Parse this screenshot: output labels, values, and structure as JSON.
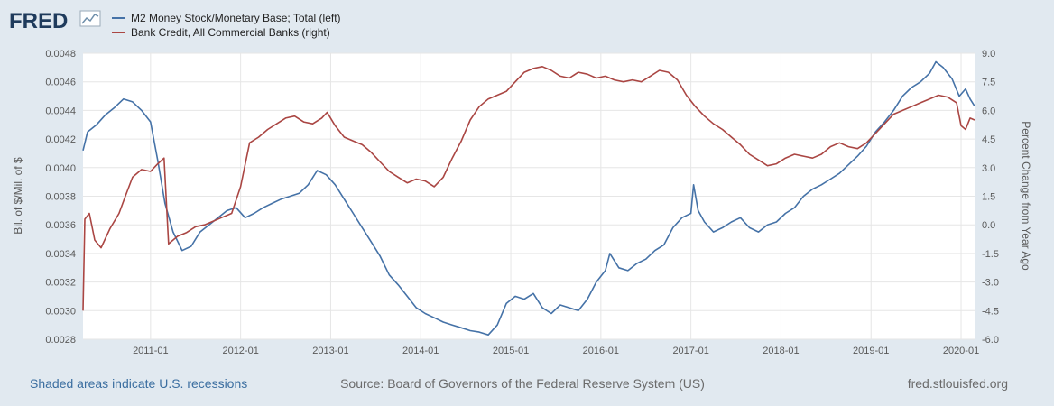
{
  "logo": {
    "text": "FRED"
  },
  "footer": {
    "recession_note": "Shaded areas indicate U.S. recessions",
    "source": "Source: Board of Governors of the Federal Reserve System (US)",
    "site": "fred.stlouisfed.org"
  },
  "colors": {
    "background": "#e1e9f0",
    "plot": "#ffffff",
    "series_left": "#4572a7",
    "series_right": "#aa4643",
    "grid": "#e6e6e6"
  },
  "chart_data": {
    "type": "line",
    "title": "",
    "xlabel": "",
    "ylabel_left": "Bil. of $/Mil. of $",
    "ylabel_right": "Percent Change from Year Ago",
    "xlim": [
      2010.25,
      2020.15
    ],
    "ylim_left": [
      0.0028,
      0.0048
    ],
    "ylim_right": [
      -6.0,
      9.0
    ],
    "x_ticks": [
      {
        "x": 2011.0,
        "label": "2011-01"
      },
      {
        "x": 2012.0,
        "label": "2012-01"
      },
      {
        "x": 2013.0,
        "label": "2013-01"
      },
      {
        "x": 2014.0,
        "label": "2014-01"
      },
      {
        "x": 2015.0,
        "label": "2015-01"
      },
      {
        "x": 2016.0,
        "label": "2016-01"
      },
      {
        "x": 2017.0,
        "label": "2017-01"
      },
      {
        "x": 2018.0,
        "label": "2018-01"
      },
      {
        "x": 2019.0,
        "label": "2019-01"
      },
      {
        "x": 2020.0,
        "label": "2020-01"
      }
    ],
    "y_ticks_left": [
      {
        "v": 0.0028,
        "label": "0.0028"
      },
      {
        "v": 0.003,
        "label": "0.0030"
      },
      {
        "v": 0.0032,
        "label": "0.0032"
      },
      {
        "v": 0.0034,
        "label": "0.0034"
      },
      {
        "v": 0.0036,
        "label": "0.0036"
      },
      {
        "v": 0.0038,
        "label": "0.0038"
      },
      {
        "v": 0.004,
        "label": "0.0040"
      },
      {
        "v": 0.0042,
        "label": "0.0042"
      },
      {
        "v": 0.0044,
        "label": "0.0044"
      },
      {
        "v": 0.0046,
        "label": "0.0046"
      },
      {
        "v": 0.0048,
        "label": "0.0048"
      }
    ],
    "y_ticks_right": [
      {
        "v": -6.0,
        "label": "-6.0"
      },
      {
        "v": -4.5,
        "label": "-4.5"
      },
      {
        "v": -3.0,
        "label": "-3.0"
      },
      {
        "v": -1.5,
        "label": "-1.5"
      },
      {
        "v": 0.0,
        "label": "0.0"
      },
      {
        "v": 1.5,
        "label": "1.5"
      },
      {
        "v": 3.0,
        "label": "3.0"
      },
      {
        "v": 4.5,
        "label": "4.5"
      },
      {
        "v": 6.0,
        "label": "6.0"
      },
      {
        "v": 7.5,
        "label": "7.5"
      },
      {
        "v": 9.0,
        "label": "9.0"
      }
    ],
    "series": [
      {
        "name": "M2 Money Stock/Monetary Base; Total (left)",
        "axis": "left",
        "color": "#4572a7",
        "points": [
          [
            2010.25,
            0.00412
          ],
          [
            2010.3,
            0.00425
          ],
          [
            2010.4,
            0.0043
          ],
          [
            2010.5,
            0.00437
          ],
          [
            2010.6,
            0.00442
          ],
          [
            2010.7,
            0.00448
          ],
          [
            2010.8,
            0.00446
          ],
          [
            2010.9,
            0.0044
          ],
          [
            2011.0,
            0.00432
          ],
          [
            2011.08,
            0.00405
          ],
          [
            2011.16,
            0.00375
          ],
          [
            2011.25,
            0.00355
          ],
          [
            2011.35,
            0.00342
          ],
          [
            2011.45,
            0.00345
          ],
          [
            2011.55,
            0.00355
          ],
          [
            2011.65,
            0.0036
          ],
          [
            2011.75,
            0.00365
          ],
          [
            2011.85,
            0.0037
          ],
          [
            2011.95,
            0.00372
          ],
          [
            2012.05,
            0.00365
          ],
          [
            2012.15,
            0.00368
          ],
          [
            2012.25,
            0.00372
          ],
          [
            2012.35,
            0.00375
          ],
          [
            2012.45,
            0.00378
          ],
          [
            2012.55,
            0.0038
          ],
          [
            2012.65,
            0.00382
          ],
          [
            2012.75,
            0.00388
          ],
          [
            2012.85,
            0.00398
          ],
          [
            2012.95,
            0.00395
          ],
          [
            2013.05,
            0.00388
          ],
          [
            2013.15,
            0.00378
          ],
          [
            2013.25,
            0.00368
          ],
          [
            2013.35,
            0.00358
          ],
          [
            2013.45,
            0.00348
          ],
          [
            2013.55,
            0.00338
          ],
          [
            2013.65,
            0.00325
          ],
          [
            2013.75,
            0.00318
          ],
          [
            2013.85,
            0.0031
          ],
          [
            2013.95,
            0.00302
          ],
          [
            2014.05,
            0.00298
          ],
          [
            2014.15,
            0.00295
          ],
          [
            2014.25,
            0.00292
          ],
          [
            2014.35,
            0.0029
          ],
          [
            2014.45,
            0.00288
          ],
          [
            2014.55,
            0.00286
          ],
          [
            2014.65,
            0.00285
          ],
          [
            2014.75,
            0.00283
          ],
          [
            2014.85,
            0.0029
          ],
          [
            2014.95,
            0.00305
          ],
          [
            2015.05,
            0.0031
          ],
          [
            2015.15,
            0.00308
          ],
          [
            2015.25,
            0.00312
          ],
          [
            2015.35,
            0.00302
          ],
          [
            2015.45,
            0.00298
          ],
          [
            2015.55,
            0.00304
          ],
          [
            2015.65,
            0.00302
          ],
          [
            2015.75,
            0.003
          ],
          [
            2015.85,
            0.00308
          ],
          [
            2015.95,
            0.0032
          ],
          [
            2016.05,
            0.00328
          ],
          [
            2016.1,
            0.0034
          ],
          [
            2016.2,
            0.0033
          ],
          [
            2016.3,
            0.00328
          ],
          [
            2016.4,
            0.00333
          ],
          [
            2016.5,
            0.00336
          ],
          [
            2016.6,
            0.00342
          ],
          [
            2016.7,
            0.00346
          ],
          [
            2016.8,
            0.00358
          ],
          [
            2016.9,
            0.00365
          ],
          [
            2017.0,
            0.00368
          ],
          [
            2017.03,
            0.00388
          ],
          [
            2017.08,
            0.0037
          ],
          [
            2017.15,
            0.00362
          ],
          [
            2017.25,
            0.00355
          ],
          [
            2017.35,
            0.00358
          ],
          [
            2017.45,
            0.00362
          ],
          [
            2017.55,
            0.00365
          ],
          [
            2017.65,
            0.00358
          ],
          [
            2017.75,
            0.00355
          ],
          [
            2017.85,
            0.0036
          ],
          [
            2017.95,
            0.00362
          ],
          [
            2018.05,
            0.00368
          ],
          [
            2018.15,
            0.00372
          ],
          [
            2018.25,
            0.0038
          ],
          [
            2018.35,
            0.00385
          ],
          [
            2018.45,
            0.00388
          ],
          [
            2018.55,
            0.00392
          ],
          [
            2018.65,
            0.00396
          ],
          [
            2018.75,
            0.00402
          ],
          [
            2018.85,
            0.00408
          ],
          [
            2018.95,
            0.00415
          ],
          [
            2019.05,
            0.00425
          ],
          [
            2019.15,
            0.00432
          ],
          [
            2019.25,
            0.0044
          ],
          [
            2019.35,
            0.0045
          ],
          [
            2019.45,
            0.00456
          ],
          [
            2019.55,
            0.0046
          ],
          [
            2019.65,
            0.00466
          ],
          [
            2019.72,
            0.00474
          ],
          [
            2019.8,
            0.0047
          ],
          [
            2019.9,
            0.00462
          ],
          [
            2019.98,
            0.0045
          ],
          [
            2020.05,
            0.00455
          ],
          [
            2020.1,
            0.00448
          ],
          [
            2020.15,
            0.00443
          ]
        ]
      },
      {
        "name": "Bank Credit, All Commercial Banks (right)",
        "axis": "right",
        "color": "#aa4643",
        "points": [
          [
            2010.25,
            -4.5
          ],
          [
            2010.27,
            0.3
          ],
          [
            2010.32,
            0.6
          ],
          [
            2010.38,
            -0.8
          ],
          [
            2010.45,
            -1.2
          ],
          [
            2010.55,
            -0.2
          ],
          [
            2010.65,
            0.6
          ],
          [
            2010.72,
            1.5
          ],
          [
            2010.8,
            2.5
          ],
          [
            2010.9,
            2.9
          ],
          [
            2011.0,
            2.8
          ],
          [
            2011.08,
            3.2
          ],
          [
            2011.15,
            3.5
          ],
          [
            2011.2,
            -1.0
          ],
          [
            2011.3,
            -0.6
          ],
          [
            2011.4,
            -0.4
          ],
          [
            2011.5,
            -0.1
          ],
          [
            2011.6,
            0.0
          ],
          [
            2011.7,
            0.2
          ],
          [
            2011.8,
            0.4
          ],
          [
            2011.9,
            0.6
          ],
          [
            2012.0,
            2.0
          ],
          [
            2012.1,
            4.3
          ],
          [
            2012.2,
            4.6
          ],
          [
            2012.3,
            5.0
          ],
          [
            2012.4,
            5.3
          ],
          [
            2012.5,
            5.6
          ],
          [
            2012.6,
            5.7
          ],
          [
            2012.7,
            5.4
          ],
          [
            2012.8,
            5.3
          ],
          [
            2012.9,
            5.6
          ],
          [
            2012.96,
            5.9
          ],
          [
            2013.05,
            5.2
          ],
          [
            2013.15,
            4.6
          ],
          [
            2013.25,
            4.4
          ],
          [
            2013.35,
            4.2
          ],
          [
            2013.45,
            3.8
          ],
          [
            2013.55,
            3.3
          ],
          [
            2013.65,
            2.8
          ],
          [
            2013.75,
            2.5
          ],
          [
            2013.85,
            2.2
          ],
          [
            2013.95,
            2.4
          ],
          [
            2014.05,
            2.3
          ],
          [
            2014.15,
            2.0
          ],
          [
            2014.25,
            2.5
          ],
          [
            2014.35,
            3.5
          ],
          [
            2014.45,
            4.4
          ],
          [
            2014.55,
            5.5
          ],
          [
            2014.65,
            6.2
          ],
          [
            2014.75,
            6.6
          ],
          [
            2014.85,
            6.8
          ],
          [
            2014.95,
            7.0
          ],
          [
            2015.05,
            7.5
          ],
          [
            2015.15,
            8.0
          ],
          [
            2015.25,
            8.2
          ],
          [
            2015.35,
            8.3
          ],
          [
            2015.45,
            8.1
          ],
          [
            2015.55,
            7.8
          ],
          [
            2015.65,
            7.7
          ],
          [
            2015.75,
            8.0
          ],
          [
            2015.85,
            7.9
          ],
          [
            2015.95,
            7.7
          ],
          [
            2016.05,
            7.8
          ],
          [
            2016.15,
            7.6
          ],
          [
            2016.25,
            7.5
          ],
          [
            2016.35,
            7.6
          ],
          [
            2016.45,
            7.5
          ],
          [
            2016.55,
            7.8
          ],
          [
            2016.65,
            8.1
          ],
          [
            2016.75,
            8.0
          ],
          [
            2016.85,
            7.6
          ],
          [
            2016.95,
            6.8
          ],
          [
            2017.05,
            6.2
          ],
          [
            2017.15,
            5.7
          ],
          [
            2017.25,
            5.3
          ],
          [
            2017.35,
            5.0
          ],
          [
            2017.45,
            4.6
          ],
          [
            2017.55,
            4.2
          ],
          [
            2017.65,
            3.7
          ],
          [
            2017.75,
            3.4
          ],
          [
            2017.85,
            3.1
          ],
          [
            2017.95,
            3.2
          ],
          [
            2018.05,
            3.5
          ],
          [
            2018.15,
            3.7
          ],
          [
            2018.25,
            3.6
          ],
          [
            2018.35,
            3.5
          ],
          [
            2018.45,
            3.7
          ],
          [
            2018.55,
            4.1
          ],
          [
            2018.65,
            4.3
          ],
          [
            2018.75,
            4.1
          ],
          [
            2018.85,
            4.0
          ],
          [
            2018.95,
            4.3
          ],
          [
            2019.05,
            4.8
          ],
          [
            2019.15,
            5.3
          ],
          [
            2019.25,
            5.8
          ],
          [
            2019.35,
            6.0
          ],
          [
            2019.45,
            6.2
          ],
          [
            2019.55,
            6.4
          ],
          [
            2019.65,
            6.6
          ],
          [
            2019.75,
            6.8
          ],
          [
            2019.85,
            6.7
          ],
          [
            2019.95,
            6.4
          ],
          [
            2020.0,
            5.2
          ],
          [
            2020.05,
            5.0
          ],
          [
            2020.1,
            5.6
          ],
          [
            2020.15,
            5.5
          ]
        ]
      }
    ]
  }
}
